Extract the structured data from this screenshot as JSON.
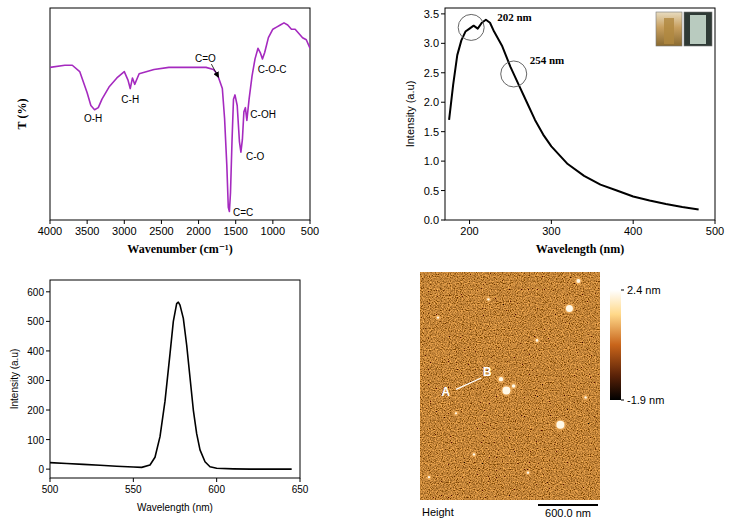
{
  "chart_data": [
    {
      "type": "line",
      "xlabel": "Wavenumber (cm⁻¹)",
      "ylabel": "T (%)",
      "x": [
        4000,
        3800,
        3700,
        3600,
        3500,
        3450,
        3400,
        3350,
        3300,
        3200,
        3100,
        3000,
        2950,
        2920,
        2890,
        2860,
        2800,
        2600,
        2400,
        2200,
        2000,
        1900,
        1800,
        1750,
        1720,
        1680,
        1650,
        1620,
        1600,
        1585,
        1570,
        1550,
        1530,
        1510,
        1480,
        1450,
        1430,
        1410,
        1390,
        1370,
        1350,
        1320,
        1280,
        1240,
        1200,
        1170,
        1140,
        1110,
        1060,
        1000,
        950,
        900,
        850,
        800,
        750,
        700,
        650,
        600,
        550,
        500
      ],
      "values": [
        72,
        73,
        73,
        70,
        60,
        54,
        52,
        53,
        57,
        63,
        67,
        70,
        66,
        62,
        67,
        64,
        69,
        71,
        72,
        72,
        72,
        72,
        71,
        69,
        66,
        62,
        48,
        26,
        6,
        4,
        13,
        37,
        57,
        59,
        54,
        37,
        32,
        38,
        51,
        53,
        47,
        57,
        68,
        76,
        81,
        79,
        76,
        79,
        86,
        90,
        91,
        92,
        93,
        92,
        90,
        90,
        88,
        86,
        85,
        81
      ],
      "color": "#a52abf",
      "xlim": [
        4000,
        500
      ],
      "xticks": [
        4000,
        3500,
        3000,
        2500,
        2000,
        1500,
        1000,
        500
      ],
      "ylim": [
        0,
        100
      ],
      "tick_labels": "x",
      "annotations": [
        {
          "text": "O-H",
          "x": 3420
        },
        {
          "text": "C-H",
          "x": 2920
        },
        {
          "text": "C=O",
          "x": 1720
        },
        {
          "text": "C=C",
          "x": 1590
        },
        {
          "text": "C-O",
          "x": 1430
        },
        {
          "text": "C-OH",
          "x": 1370
        },
        {
          "text": "C-O-C",
          "x": 1150
        }
      ]
    },
    {
      "type": "line",
      "xlabel": "Wavelength (nm)",
      "ylabel": "Intensity (a.u)",
      "x": [
        175,
        180,
        185,
        190,
        195,
        200,
        205,
        210,
        215,
        220,
        225,
        230,
        240,
        250,
        260,
        270,
        280,
        290,
        300,
        320,
        340,
        360,
        380,
        400,
        420,
        440,
        460,
        480
      ],
      "values": [
        1.7,
        2.3,
        2.8,
        3.05,
        3.2,
        3.25,
        3.3,
        3.25,
        3.35,
        3.4,
        3.35,
        3.2,
        2.95,
        2.6,
        2.3,
        2.0,
        1.7,
        1.45,
        1.25,
        0.95,
        0.75,
        0.6,
        0.5,
        0.4,
        0.33,
        0.27,
        0.22,
        0.18
      ],
      "color": "#000000",
      "xlim": [
        170,
        500
      ],
      "xticks": [
        200,
        300,
        400,
        500
      ],
      "ylim": [
        0,
        3.6
      ],
      "yticks": [
        {
          "value": 0,
          "label": "0.0"
        },
        0.5,
        {
          "value": 1,
          "label": "1.0"
        },
        1.5,
        {
          "value": 2,
          "label": "2.0"
        },
        2.5,
        {
          "value": 3,
          "label": "3.0"
        },
        3.5
      ],
      "annotations": [
        {
          "text": "202 nm",
          "x": 202
        },
        {
          "text": "254 nm",
          "x": 254
        }
      ]
    },
    {
      "type": "line",
      "xlabel": "Wavelength (nm)",
      "ylabel": "Intensity (a.u)",
      "x": [
        500,
        510,
        520,
        530,
        540,
        550,
        555,
        560,
        563,
        566,
        569,
        572,
        574,
        576,
        577,
        578,
        580,
        582,
        584,
        586,
        588,
        590,
        593,
        596,
        600,
        610,
        620,
        630,
        645
      ],
      "values": [
        22,
        19,
        16,
        13,
        10,
        7,
        6,
        14,
        40,
        110,
        230,
        390,
        500,
        560,
        565,
        555,
        510,
        420,
        310,
        200,
        120,
        65,
        25,
        8,
        3,
        1,
        0,
        0,
        0
      ],
      "color": "#000000",
      "xlim": [
        500,
        650
      ],
      "xticks": [
        500,
        550,
        600,
        650
      ],
      "ylim": [
        -30,
        640
      ],
      "yticks": [
        0,
        100,
        200,
        300,
        400,
        500,
        600
      ]
    },
    {
      "type": "image",
      "image_label": "Height",
      "labels": [
        "A",
        "B"
      ],
      "scale_bar": "600.0 nm",
      "colorbar": {
        "range": [
          -1.9,
          2.4
        ],
        "ticks": [
          {
            "value": 2.4,
            "label": "2.4 nm"
          },
          {
            "value": -1.9,
            "label": "-1.9 nm"
          }
        ]
      }
    }
  ]
}
